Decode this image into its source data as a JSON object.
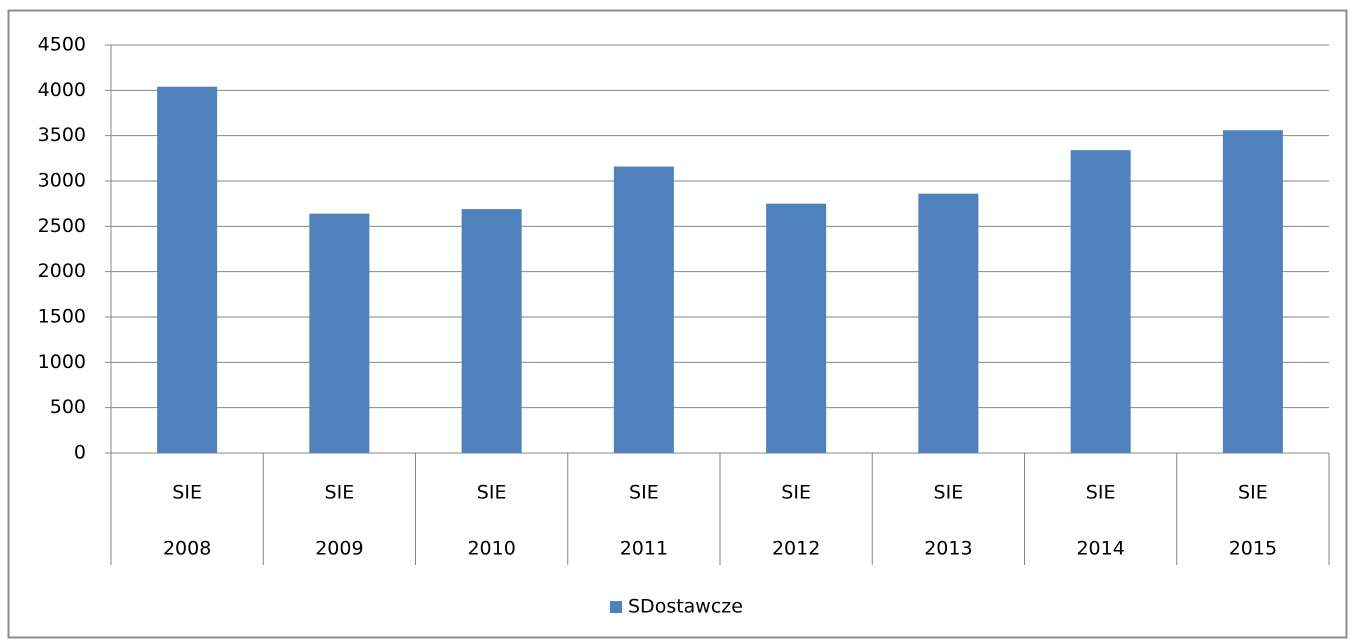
{
  "chart_data": {
    "type": "bar",
    "categories": [
      [
        "SIE",
        "2008"
      ],
      [
        "SIE",
        "2009"
      ],
      [
        "SIE",
        "2010"
      ],
      [
        "SIE",
        "2011"
      ],
      [
        "SIE",
        "2012"
      ],
      [
        "SIE",
        "2013"
      ],
      [
        "SIE",
        "2014"
      ],
      [
        "SIE",
        "2015"
      ]
    ],
    "series": [
      {
        "name": "SDostawcze",
        "color": "#4f81bd",
        "values": [
          4040,
          2640,
          2690,
          3160,
          2750,
          2860,
          3340,
          3560
        ]
      }
    ],
    "ylim": [
      0,
      4500
    ],
    "yticks": [
      0,
      500,
      1000,
      1500,
      2000,
      2500,
      3000,
      3500,
      4000,
      4500
    ],
    "grid": true,
    "legend": "bottom"
  }
}
